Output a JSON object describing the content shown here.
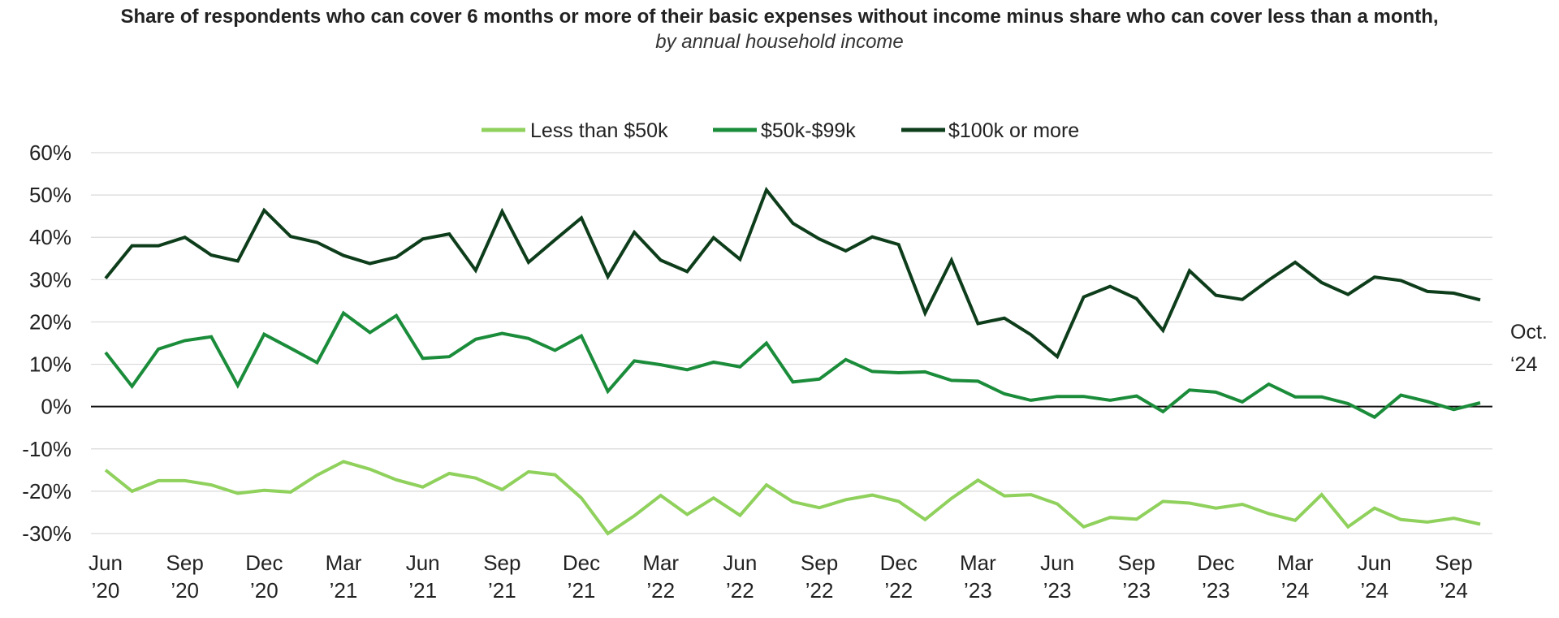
{
  "chart_data": {
    "type": "line",
    "title": "Share of respondents who can cover 6 months or more of their basic expenses without income minus share who can cover less than a month,",
    "subtitle": "by annual household income",
    "y_ticks": [
      "60%",
      "50%",
      "40%",
      "30%",
      "20%",
      "10%",
      "0%",
      "-10%",
      "-20%",
      "-30%"
    ],
    "ylim": [
      -30,
      60
    ],
    "x_tick_labels": [
      {
        "month": "Jun",
        "year": "’20"
      },
      {
        "month": "Sep",
        "year": "’20"
      },
      {
        "month": "Dec",
        "year": "’20"
      },
      {
        "month": "Mar",
        "year": "’21"
      },
      {
        "month": "Jun",
        "year": "’21"
      },
      {
        "month": "Sep",
        "year": "’21"
      },
      {
        "month": "Dec",
        "year": "’21"
      },
      {
        "month": "Mar",
        "year": "’22"
      },
      {
        "month": "Jun",
        "year": "’22"
      },
      {
        "month": "Sep",
        "year": "’22"
      },
      {
        "month": "Dec",
        "year": "’22"
      },
      {
        "month": "Mar",
        "year": "’23"
      },
      {
        "month": "Jun",
        "year": "’23"
      },
      {
        "month": "Sep",
        "year": "’23"
      },
      {
        "month": "Dec",
        "year": "’23"
      },
      {
        "month": "Mar",
        "year": "’24"
      },
      {
        "month": "Jun",
        "year": "’24"
      },
      {
        "month": "Sep",
        "year": "’24"
      }
    ],
    "end_label": {
      "line1": "Oct.",
      "line2": "‘24"
    },
    "x": [
      "2020-06",
      "2020-07",
      "2020-08",
      "2020-09",
      "2020-10",
      "2020-11",
      "2020-12",
      "2021-01",
      "2021-02",
      "2021-03",
      "2021-04",
      "2021-05",
      "2021-06",
      "2021-07",
      "2021-08",
      "2021-09",
      "2021-10",
      "2021-11",
      "2021-12",
      "2022-01",
      "2022-02",
      "2022-03",
      "2022-04",
      "2022-05",
      "2022-06",
      "2022-07",
      "2022-08",
      "2022-09",
      "2022-10",
      "2022-11",
      "2022-12",
      "2023-01",
      "2023-02",
      "2023-03",
      "2023-04",
      "2023-05",
      "2023-06",
      "2023-07",
      "2023-08",
      "2023-09",
      "2023-10",
      "2023-11",
      "2023-12",
      "2024-01",
      "2024-02",
      "2024-03",
      "2024-04",
      "2024-05",
      "2024-06",
      "2024-07",
      "2024-08",
      "2024-09",
      "2024-10"
    ],
    "legend_position": "top-center",
    "grid": true,
    "series": [
      {
        "name": "Less than $50k",
        "color": "#8fd15c",
        "values": [
          -15,
          -20,
          -17.5,
          -17.5,
          -18.5,
          -20.5,
          -19.8,
          -20.2,
          -16.2,
          -13,
          -14.8,
          -17.3,
          -19,
          -15.8,
          -16.9,
          -19.6,
          -15.4,
          -16.1,
          -21.6,
          -30,
          -25.8,
          -21,
          -25.5,
          -21.6,
          -25.7,
          -18.5,
          -22.5,
          -23.9,
          -22,
          -20.9,
          -22.4,
          -26.7,
          -21.7,
          -17.4,
          -21.1,
          -20.8,
          -23,
          -28.4,
          -26.2,
          -26.6,
          -22.4,
          -22.8,
          -24,
          -23.1,
          -25.3,
          -26.9,
          -20.8,
          -28.4,
          -24,
          -26.7,
          -27.3,
          -26.4,
          -27.8
        ]
      },
      {
        "name": "$50k-$99k",
        "color": "#1a8c3a",
        "values": [
          12.8,
          4.8,
          13.6,
          15.6,
          16.5,
          5,
          17.1,
          13.8,
          10.4,
          22.1,
          17.5,
          21.5,
          11.4,
          11.8,
          15.9,
          17.3,
          16.1,
          13.3,
          16.7,
          3.6,
          10.8,
          9.9,
          8.7,
          10.5,
          9.4,
          15,
          5.8,
          6.5,
          11.1,
          8.3,
          8,
          8.2,
          6.2,
          6,
          3,
          1.5,
          2.4,
          2.4,
          1.5,
          2.5,
          -1.2,
          3.9,
          3.4,
          1.1,
          5.3,
          2.3,
          2.3,
          0.7,
          -2.5,
          2.7,
          1.2,
          -0.7,
          0.9
        ]
      },
      {
        "name": "$100k or more",
        "color": "#0d3d1a",
        "values": [
          30.3,
          38,
          38,
          40,
          35.8,
          34.4,
          46.4,
          40.2,
          38.8,
          35.7,
          33.8,
          35.3,
          39.6,
          40.8,
          32.2,
          46.1,
          34.1,
          39.4,
          44.6,
          30.7,
          41.2,
          34.6,
          31.9,
          39.9,
          34.8,
          51.2,
          43.3,
          39.6,
          36.8,
          40.1,
          38.3,
          22.1,
          34.6,
          19.6,
          20.9,
          17,
          11.8,
          25.9,
          28.4,
          25.5,
          18,
          32.1,
          26.3,
          25.3,
          29.9,
          34.1,
          29.3,
          26.5,
          30.6,
          29.8,
          27.2,
          26.8,
          25.2
        ]
      }
    ]
  }
}
